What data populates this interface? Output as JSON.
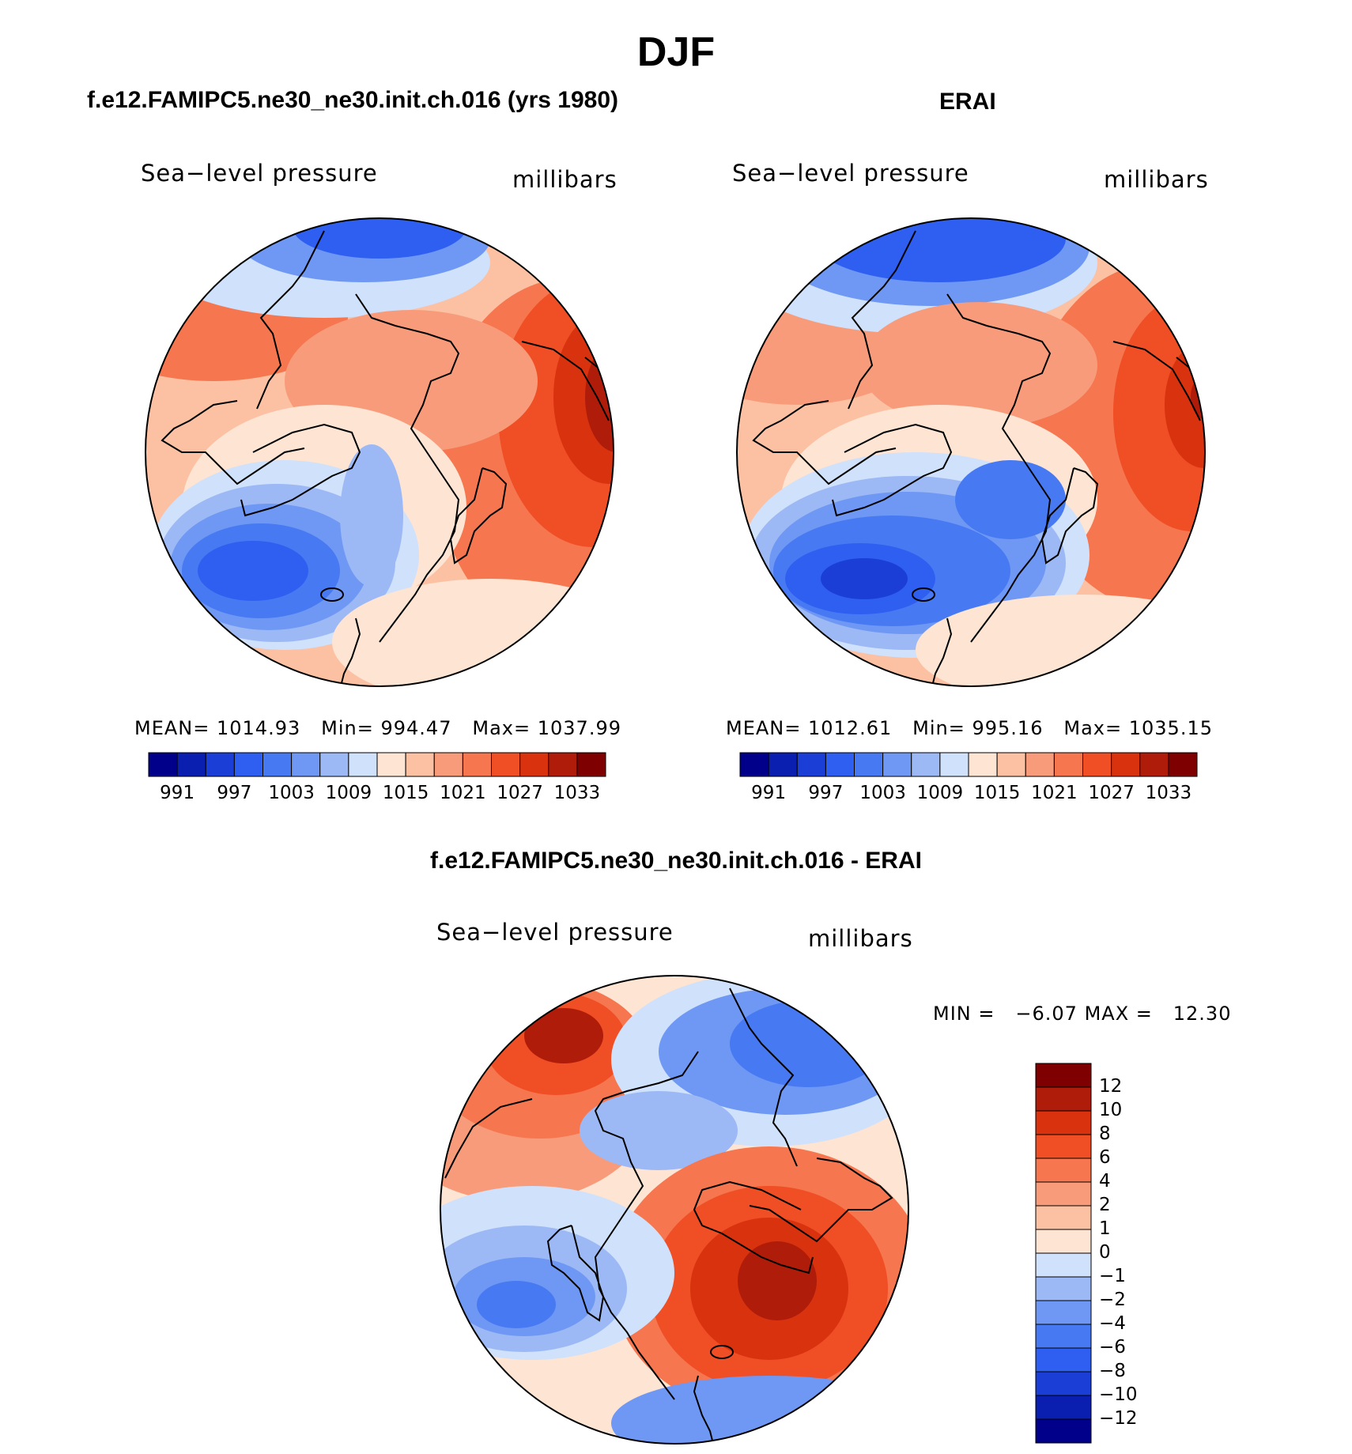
{
  "figure": {
    "title": "DJF",
    "top_left_title": "f.e12.FAMIPC5.ne30_ne30.init.ch.016 (yrs 1980)",
    "top_right_title": "ERAI",
    "bottom_title": "f.e12.FAMIPC5.ne30_ne30.init.ch.016 - ERAI"
  },
  "colors": {
    "abs_scale": [
      "#00008b",
      "#0a1fb0",
      "#1b3fd6",
      "#2e5ff0",
      "#4779f2",
      "#6f98f4",
      "#9cb9f6",
      "#cfe1fb",
      "#fde4d3",
      "#fcc0a3",
      "#f89b7a",
      "#f5764f",
      "#f04e24",
      "#d8320f",
      "#b01c0a",
      "#7f0000"
    ],
    "diff_scale": [
      "#00008b",
      "#0a1fb0",
      "#1b3fd6",
      "#2e5ff0",
      "#4779f2",
      "#6f98f4",
      "#9cb9f6",
      "#cfe1fb",
      "#fde4d3",
      "#fcc0a3",
      "#f89b7a",
      "#f5764f",
      "#f04e24",
      "#d8320f",
      "#b01c0a",
      "#7f0000"
    ]
  },
  "chart_data": [
    {
      "type": "heatmap",
      "panel": "model",
      "title": "f.e12.FAMIPC5.ne30_ne30.init.ch.016 (yrs 1980)",
      "left_label": "Sea−level pressure",
      "right_label": "millibars",
      "stats": {
        "mean_label": "MEAN=",
        "mean": "1014.93",
        "min_label": "Min=",
        "min": "994.47",
        "max_label": "Max=",
        "max": "1037.99"
      },
      "colorbar_ticks": [
        "991",
        "997",
        "1003",
        "1009",
        "1015",
        "1021",
        "1027",
        "1033"
      ],
      "units": "millibars"
    },
    {
      "type": "heatmap",
      "panel": "obs",
      "title": "ERAI",
      "left_label": "Sea−level pressure",
      "right_label": "millibars",
      "stats": {
        "mean_label": "MEAN=",
        "mean": "1012.61",
        "min_label": "Min=",
        "min": "995.16",
        "max_label": "Max=",
        "max": "1035.15"
      },
      "colorbar_ticks": [
        "991",
        "997",
        "1003",
        "1009",
        "1015",
        "1021",
        "1027",
        "1033"
      ],
      "units": "millibars"
    },
    {
      "type": "heatmap",
      "panel": "difference",
      "title": "f.e12.FAMIPC5.ne30_ne30.init.ch.016 - ERAI",
      "left_label": "Sea−level pressure",
      "right_label": "millibars",
      "stats": {
        "min_label": "MIN =",
        "min": "−6.07",
        "max_label": "MAX =",
        "max": "12.30"
      },
      "colorbar_ticks": [
        "12",
        "10",
        "8",
        "6",
        "4",
        "2",
        "1",
        "0",
        "−1",
        "−2",
        "−4",
        "−6",
        "−8",
        "−10",
        "−12"
      ],
      "units": "millibars"
    }
  ]
}
